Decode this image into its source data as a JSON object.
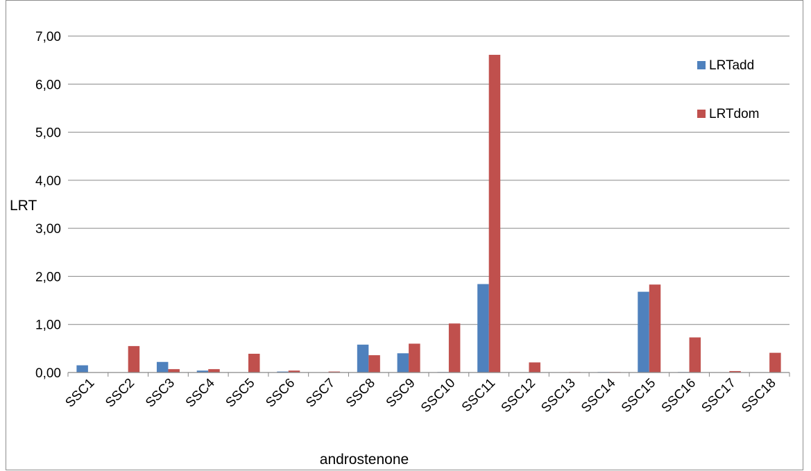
{
  "chart_data": {
    "type": "bar",
    "title": "",
    "xlabel": "androstenone",
    "ylabel": "LRT",
    "ylim": [
      0,
      7
    ],
    "yticks": [
      "0,00",
      "1,00",
      "2,00",
      "3,00",
      "4,00",
      "5,00",
      "6,00",
      "7,00"
    ],
    "grid": true,
    "legend_position": "top-right",
    "categories": [
      "SSC1",
      "SSC2",
      "SSC3",
      "SSC4",
      "SSC5",
      "SSC6",
      "SSC7",
      "SSC8",
      "SSC9",
      "SSC10",
      "SSC11",
      "SSC12",
      "SSC13",
      "SSC14",
      "SSC15",
      "SSC16",
      "SSC17",
      "SSC18"
    ],
    "series": [
      {
        "name": "LRTadd",
        "color": "#4f81bd",
        "values": [
          0.15,
          0.0,
          0.22,
          0.04,
          0.0,
          0.02,
          0.0,
          0.58,
          0.4,
          0.01,
          1.84,
          0.0,
          0.0,
          0.01,
          1.68,
          0.01,
          0.0,
          0.0
        ]
      },
      {
        "name": "LRTdom",
        "color": "#c0504d",
        "values": [
          0.0,
          0.55,
          0.07,
          0.07,
          0.39,
          0.04,
          0.02,
          0.36,
          0.6,
          1.02,
          6.61,
          0.21,
          0.01,
          0.01,
          1.83,
          0.73,
          0.03,
          0.41
        ]
      }
    ]
  }
}
